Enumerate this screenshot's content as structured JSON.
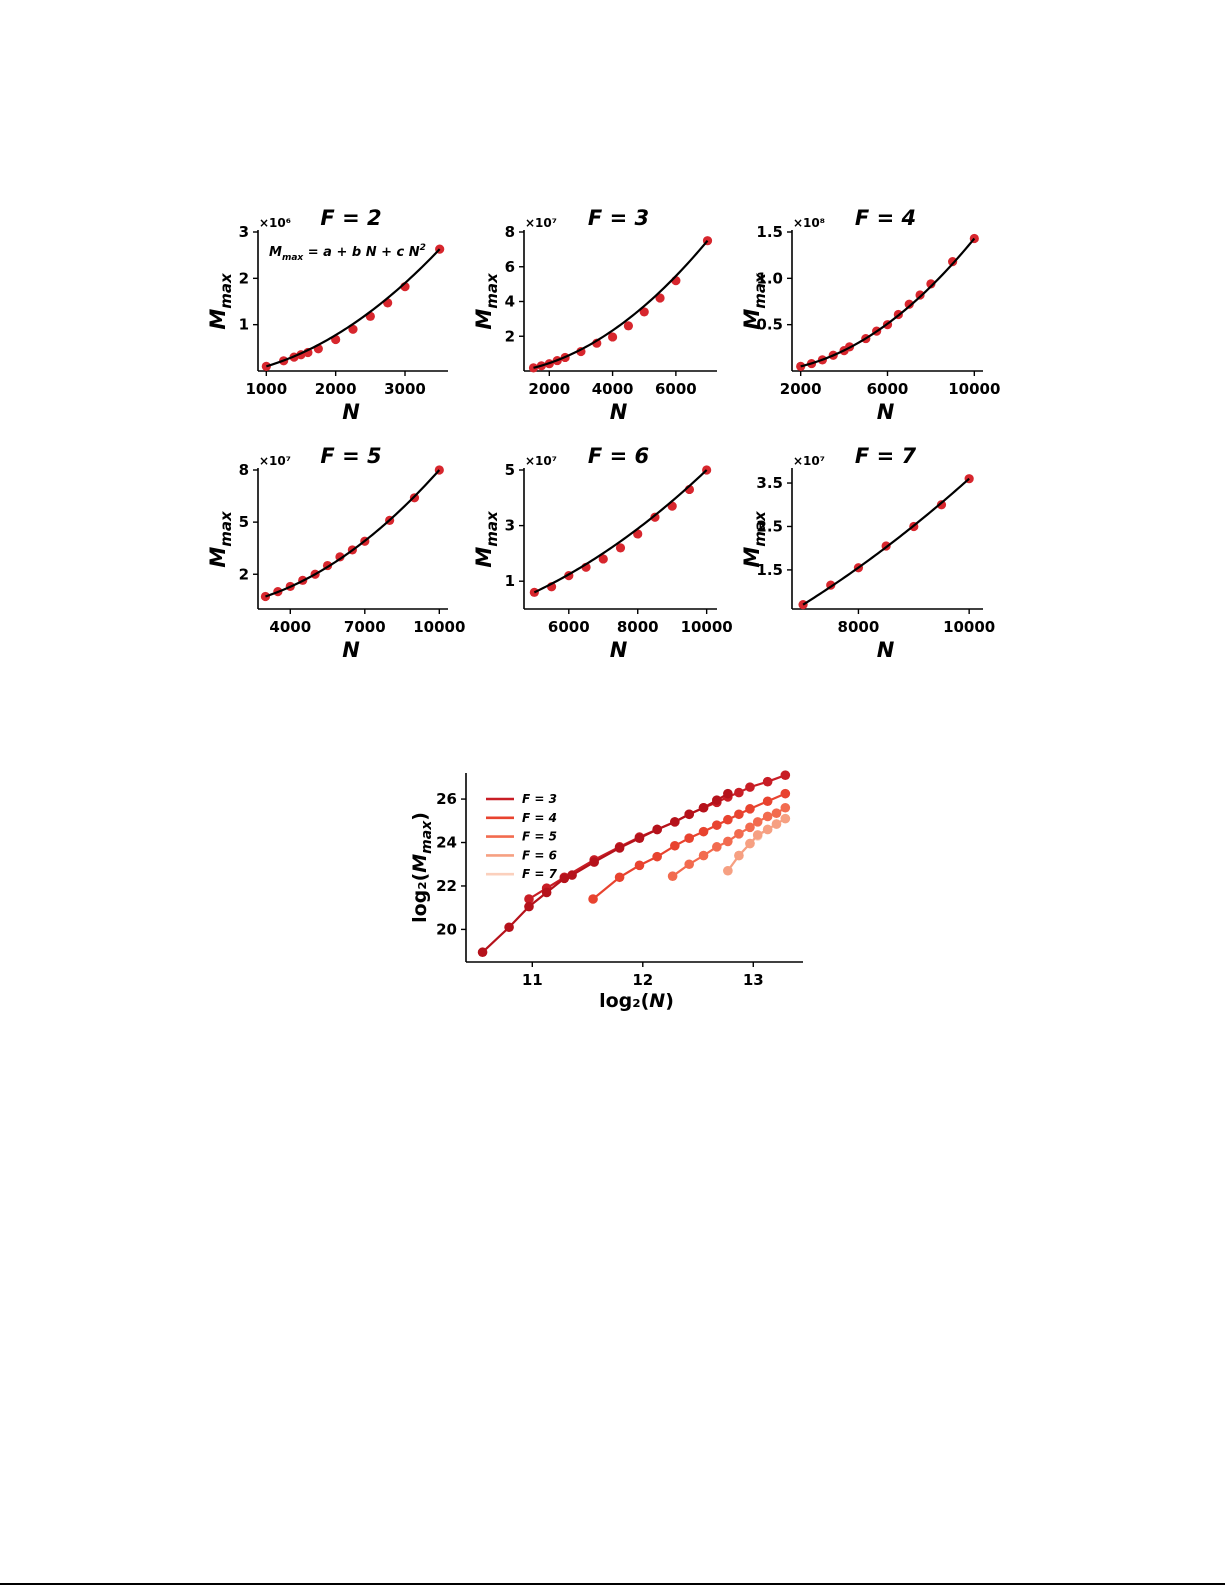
{
  "chart_data": [
    {
      "type": "scatter",
      "panel": "F=2",
      "title": "F = 2",
      "xlabel": "N",
      "ylabel": "M_max",
      "y_multiplier": "×10⁶",
      "annotation": {
        "lhs": "M",
        "lhs_sub": "max",
        "rhs": " = a + b N + c N",
        "rhs_sup": "2"
      },
      "xlim": [
        880,
        3620
      ],
      "ylim": [
        0.0,
        3.0
      ],
      "xticks": [
        1000,
        2000,
        3000
      ],
      "xtick_labels": [
        "1000",
        "2000",
        "3000"
      ],
      "yticks": [
        1,
        2,
        3
      ],
      "ytick_labels": [
        "1",
        "2",
        "3"
      ],
      "fit": {
        "a": 0.1,
        "b": 0.0,
        "c": 0.197
      },
      "points": {
        "x": [
          1000,
          1250,
          1400,
          1500,
          1600,
          1750,
          2000,
          2250,
          2500,
          2750,
          3000,
          3500
        ],
        "y": [
          0.1,
          0.22,
          0.3,
          0.35,
          0.4,
          0.48,
          0.68,
          0.9,
          1.18,
          1.47,
          1.82,
          2.63
        ]
      }
    },
    {
      "type": "scatter",
      "panel": "F=3",
      "title": "F = 3",
      "xlabel": "N",
      "ylabel": "M_max",
      "y_multiplier": "×10⁷",
      "xlim": [
        1200,
        7300
      ],
      "ylim": [
        0.0,
        8.0
      ],
      "xticks": [
        2000,
        4000,
        6000
      ],
      "xtick_labels": [
        "2000",
        "4000",
        "6000"
      ],
      "yticks": [
        2,
        4,
        6,
        8
      ],
      "ytick_labels": [
        "2",
        "4",
        "6",
        "8"
      ],
      "fit": {
        "a": 0.0,
        "b": 0.0,
        "c": 0.1525
      },
      "points": {
        "x": [
          1500,
          1750,
          2000,
          2250,
          2500,
          3000,
          3500,
          4000,
          4500,
          5000,
          5500,
          6000,
          7000
        ],
        "y": [
          0.18,
          0.3,
          0.42,
          0.6,
          0.78,
          1.12,
          1.6,
          1.96,
          2.6,
          3.4,
          4.2,
          5.2,
          7.5
        ]
      }
    },
    {
      "type": "scatter",
      "panel": "F=4",
      "title": "F = 4",
      "xlabel": "N",
      "ylabel": "M_max",
      "y_multiplier": "×10⁸",
      "xlim": [
        1600,
        10400
      ],
      "ylim": [
        0.0,
        1.5
      ],
      "xticks": [
        2000,
        6000,
        10000
      ],
      "xtick_labels": [
        "2000",
        "6000",
        "10000"
      ],
      "yticks": [
        0.5,
        1.0,
        1.5
      ],
      "ytick_labels": [
        "0.5",
        "1.0",
        "1.5"
      ],
      "fit": {
        "a": 0.0,
        "b": 0.0,
        "c": 0.01435
      },
      "points": {
        "x": [
          2000,
          2500,
          3000,
          3500,
          4000,
          4250,
          5000,
          5500,
          6000,
          6500,
          7000,
          7500,
          8000,
          9000,
          10000
        ],
        "y": [
          0.05,
          0.08,
          0.12,
          0.17,
          0.22,
          0.26,
          0.35,
          0.43,
          0.5,
          0.61,
          0.72,
          0.82,
          0.94,
          1.18,
          1.43
        ]
      }
    },
    {
      "type": "scatter",
      "panel": "F=5",
      "title": "F = 5",
      "xlabel": "N",
      "ylabel": "M_max",
      "y_multiplier": "×10⁷",
      "xlim": [
        2700,
        10350
      ],
      "ylim": [
        0.0,
        8.0
      ],
      "xticks": [
        4000,
        7000,
        10000
      ],
      "xtick_labels": [
        "4000",
        "7000",
        "10000"
      ],
      "yticks": [
        2,
        5,
        8
      ],
      "ytick_labels": [
        "2",
        "5",
        "8"
      ],
      "fit": {
        "a": 0.0,
        "b": 0.0,
        "c": 0.08
      },
      "points": {
        "x": [
          3000,
          3500,
          4000,
          4500,
          5000,
          5500,
          6000,
          6500,
          7000,
          8000,
          9000,
          10000
        ],
        "y": [
          0.72,
          1.0,
          1.3,
          1.65,
          2.0,
          2.5,
          3.0,
          3.4,
          3.9,
          5.1,
          6.4,
          8.0
        ]
      }
    },
    {
      "type": "scatter",
      "panel": "F=6",
      "title": "F = 6",
      "xlabel": "N",
      "ylabel": "M_max",
      "y_multiplier": "×10⁷",
      "xlim": [
        4700,
        10300
      ],
      "ylim": [
        0.0,
        5.0
      ],
      "xticks": [
        6000,
        8000,
        10000
      ],
      "xtick_labels": [
        "6000",
        "8000",
        "10000"
      ],
      "yticks": [
        1,
        3,
        5
      ],
      "ytick_labels": [
        "1",
        "3",
        "5"
      ],
      "fit": {
        "a": 0.0,
        "b": 0.0,
        "c": 0.05
      },
      "points": {
        "x": [
          5000,
          5500,
          6000,
          6500,
          7000,
          7500,
          8000,
          8500,
          9000,
          9500,
          10000
        ],
        "y": [
          0.6,
          0.8,
          1.2,
          1.5,
          1.8,
          2.2,
          2.7,
          3.3,
          3.7,
          4.3,
          5.0
        ]
      }
    },
    {
      "type": "scatter",
      "panel": "F=7",
      "title": "F = 7",
      "xlabel": "N",
      "ylabel": "M_max",
      "y_multiplier": "×10⁷",
      "xlim": [
        6800,
        10250
      ],
      "ylim": [
        0.6,
        3.8
      ],
      "xticks": [
        8000,
        10000
      ],
      "xtick_labels": [
        "8000",
        "10000"
      ],
      "yticks": [
        1.5,
        2.5,
        3.5
      ],
      "ytick_labels": [
        "1.5",
        "2.5",
        "3.5"
      ],
      "fit": {
        "a": 0.0,
        "b": 0.0,
        "c": 0.036
      },
      "points": {
        "x": [
          7000,
          7500,
          8000,
          8500,
          9000,
          9500,
          10000
        ],
        "y": [
          0.7,
          1.15,
          1.55,
          2.05,
          2.5,
          3.0,
          3.6
        ]
      }
    },
    {
      "type": "line",
      "panel": "log-log",
      "title": "",
      "xlabel": "log₂(N)",
      "ylabel": "log₂(M_max)",
      "xlim": [
        10.4,
        13.45
      ],
      "ylim": [
        18.5,
        27.2
      ],
      "xticks": [
        11,
        12,
        13
      ],
      "xtick_labels": [
        "11",
        "12",
        "13"
      ],
      "yticks": [
        20,
        22,
        24,
        26
      ],
      "ytick_labels": [
        "20",
        "22",
        "24",
        "26"
      ],
      "legend": [
        "F = 3",
        "F = 4",
        "F = 5",
        "F = 6",
        "F = 7"
      ],
      "legend_position": "upper-left",
      "series": [
        {
          "name": "F = 2",
          "color": "#b5121b",
          "in_legend": false,
          "x": [
            10.55,
            10.79,
            10.97,
            11.13,
            11.29,
            11.36,
            11.56,
            11.79,
            11.97,
            12.13,
            12.29,
            12.42,
            12.55,
            12.67,
            12.77
          ],
          "y": [
            18.95,
            20.1,
            21.05,
            21.7,
            22.35,
            22.5,
            23.1,
            23.75,
            24.2,
            24.6,
            24.95,
            25.3,
            25.6,
            25.95,
            26.25
          ]
        },
        {
          "name": "F = 3",
          "color": "#c81d25",
          "in_legend": true,
          "x": [
            10.97,
            11.13,
            11.29,
            11.56,
            11.79,
            11.97,
            12.13,
            12.29,
            12.42,
            12.55,
            12.67,
            12.77,
            12.87,
            12.97,
            13.13,
            13.29
          ],
          "y": [
            21.4,
            21.9,
            22.4,
            23.2,
            23.8,
            24.25,
            24.6,
            24.95,
            25.3,
            25.6,
            25.85,
            26.1,
            26.3,
            26.55,
            26.8,
            27.1
          ]
        },
        {
          "name": "F = 4",
          "color": "#e8432f",
          "in_legend": true,
          "x": [
            11.55,
            11.79,
            11.97,
            12.13,
            12.29,
            12.42,
            12.55,
            12.67,
            12.77,
            12.87,
            12.97,
            13.13,
            13.29
          ],
          "y": [
            21.4,
            22.4,
            22.95,
            23.35,
            23.85,
            24.2,
            24.5,
            24.8,
            25.05,
            25.3,
            25.55,
            25.9,
            26.25
          ]
        },
        {
          "name": "F = 5",
          "color": "#f26b4f",
          "in_legend": true,
          "x": [
            12.27,
            12.42,
            12.55,
            12.67,
            12.77,
            12.87,
            12.97,
            13.04,
            13.13,
            13.21,
            13.29
          ],
          "y": [
            22.45,
            23.0,
            23.4,
            23.8,
            24.05,
            24.4,
            24.7,
            24.95,
            25.2,
            25.35,
            25.6
          ]
        },
        {
          "name": "F = 6",
          "color": "#f6a082",
          "in_legend": true,
          "x": [
            12.77,
            12.87,
            12.97,
            13.04,
            13.13,
            13.21,
            13.29
          ],
          "y": [
            22.7,
            23.4,
            23.95,
            24.35,
            24.6,
            24.85,
            25.1
          ]
        },
        {
          "name": "F = 7",
          "color": "#fbd0bd",
          "in_legend": true,
          "x": [
            12.77,
            12.87,
            12.97,
            13.04,
            13.13,
            13.21,
            13.29
          ],
          "y": [
            22.7,
            23.4,
            23.95,
            24.3,
            24.6,
            24.85,
            25.1
          ]
        }
      ]
    }
  ]
}
